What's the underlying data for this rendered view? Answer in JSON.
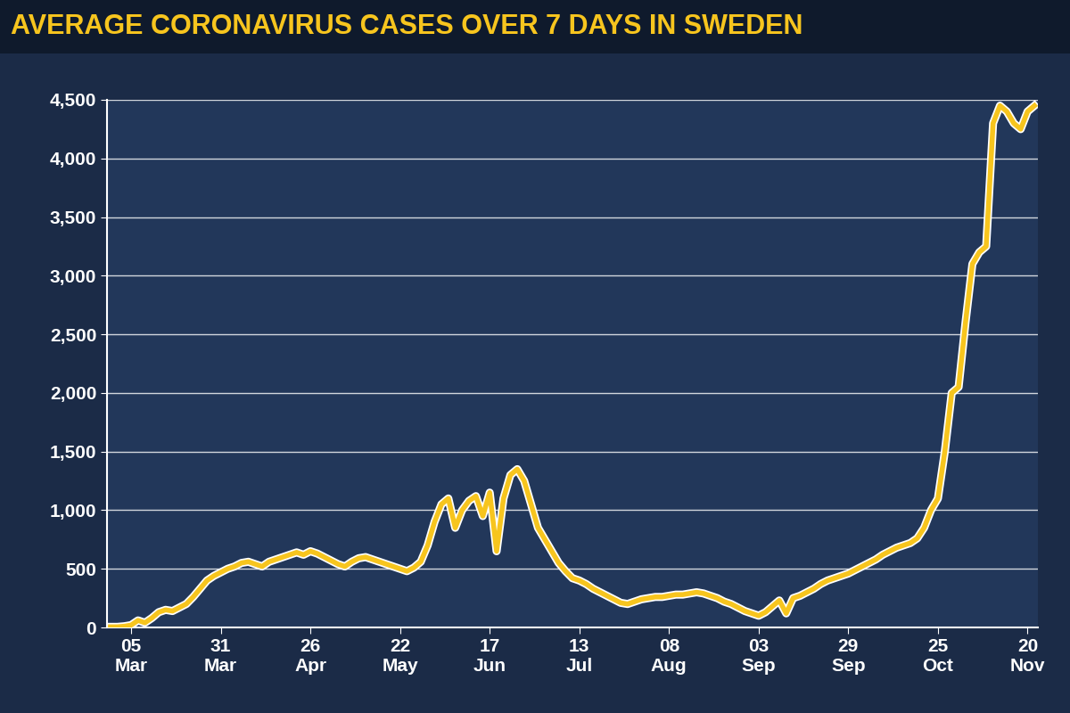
{
  "chart_data": {
    "type": "line",
    "title": "AVERAGE CORONAVIRUS CASES OVER 7 DAYS IN SWEDEN",
    "categories": [
      null,
      null,
      null,
      "05\nMar",
      null,
      null,
      null,
      null,
      null,
      null,
      null,
      null,
      null,
      null,
      null,
      null,
      "31\nMar",
      null,
      null,
      null,
      null,
      null,
      null,
      null,
      null,
      null,
      null,
      null,
      null,
      "26\nApr",
      null,
      null,
      null,
      null,
      null,
      null,
      null,
      null,
      null,
      null,
      null,
      null,
      "22\nMay",
      null,
      null,
      null,
      null,
      null,
      null,
      null,
      null,
      null,
      null,
      null,
      null,
      "17\nJun",
      null,
      null,
      null,
      null,
      null,
      null,
      null,
      null,
      null,
      null,
      null,
      null,
      "13\nJul",
      null,
      null,
      null,
      null,
      null,
      null,
      null,
      null,
      null,
      null,
      null,
      null,
      "08\nAug",
      null,
      null,
      null,
      null,
      null,
      null,
      null,
      null,
      null,
      null,
      null,
      null,
      "03\nSep",
      null,
      null,
      null,
      null,
      null,
      null,
      null,
      null,
      null,
      null,
      null,
      null,
      "29\nSep",
      null,
      null,
      null,
      null,
      null,
      null,
      null,
      null,
      null,
      null,
      null,
      null,
      "25\nOct",
      null,
      null,
      null,
      null,
      null,
      null,
      null,
      null,
      null,
      null,
      null,
      null,
      "20\nNov",
      null
    ],
    "values": [
      5,
      5,
      10,
      20,
      60,
      40,
      80,
      130,
      150,
      140,
      170,
      200,
      260,
      330,
      400,
      440,
      470,
      500,
      520,
      550,
      560,
      540,
      520,
      560,
      580,
      600,
      620,
      640,
      620,
      650,
      630,
      600,
      570,
      540,
      520,
      560,
      590,
      600,
      580,
      560,
      540,
      520,
      500,
      480,
      510,
      560,
      700,
      900,
      1050,
      1100,
      850,
      1000,
      1080,
      1120,
      950,
      1150,
      650,
      1100,
      1300,
      1350,
      1250,
      1050,
      850,
      750,
      650,
      550,
      480,
      420,
      400,
      370,
      330,
      300,
      270,
      240,
      210,
      200,
      220,
      240,
      250,
      260,
      260,
      270,
      280,
      280,
      290,
      300,
      290,
      270,
      250,
      220,
      200,
      170,
      140,
      120,
      100,
      130,
      180,
      230,
      120,
      250,
      270,
      300,
      330,
      370,
      400,
      420,
      440,
      460,
      490,
      520,
      550,
      580,
      620,
      650,
      680,
      700,
      720,
      760,
      850,
      1000,
      1100,
      1500,
      2000,
      2050,
      2600,
      3100,
      3200,
      3250,
      4300,
      4450,
      4400,
      4300,
      4250,
      4400,
      4450
    ],
    "color": "#f7c51e",
    "ylim": [
      0,
      4500
    ],
    "yticks": [
      0,
      500,
      {
        "value": 1000,
        "label": "1,000"
      },
      {
        "value": 1500,
        "label": "1,500"
      },
      {
        "value": 2000,
        "label": "2,000"
      },
      {
        "value": 2500,
        "label": "2,500"
      },
      {
        "value": 3000,
        "label": "3,000"
      },
      {
        "value": 3500,
        "label": "3,500"
      },
      {
        "value": 4000,
        "label": "4,000"
      },
      {
        "value": 4500,
        "label": "4,500"
      }
    ],
    "grid": true
  }
}
